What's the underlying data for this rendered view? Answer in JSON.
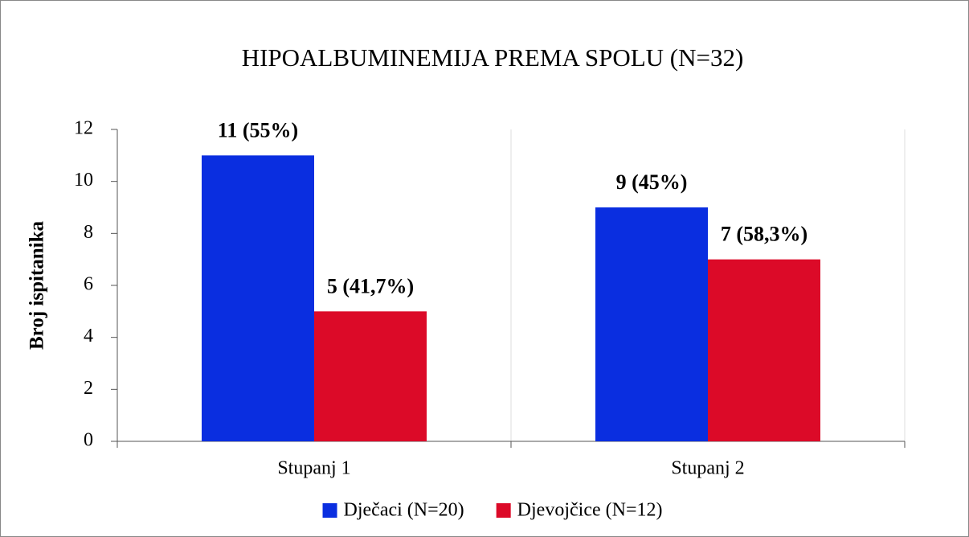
{
  "chart_data": {
    "type": "bar",
    "title": "HIPOALBUMINEMIJA PREMA SPOLU (N=32)",
    "y_label": "Broj ispitanika",
    "categories": [
      "Stupanj 1",
      "Stupanj 2"
    ],
    "series": [
      {
        "name": "Dječaci (N=20)",
        "color": "#0a2ee0",
        "values": [
          11,
          9
        ],
        "value_labels": [
          "11 (55%)",
          "9 (45%)"
        ]
      },
      {
        "name": "Djevojčice (N=12)",
        "color": "#dc0a28",
        "values": [
          5,
          7
        ],
        "value_labels": [
          "5 (41,7%)",
          "7 (58,3%)"
        ]
      }
    ],
    "ylim": [
      0,
      12
    ],
    "yticks": [
      0,
      2,
      4,
      6,
      8,
      10,
      12
    ],
    "legend": "bottom"
  }
}
